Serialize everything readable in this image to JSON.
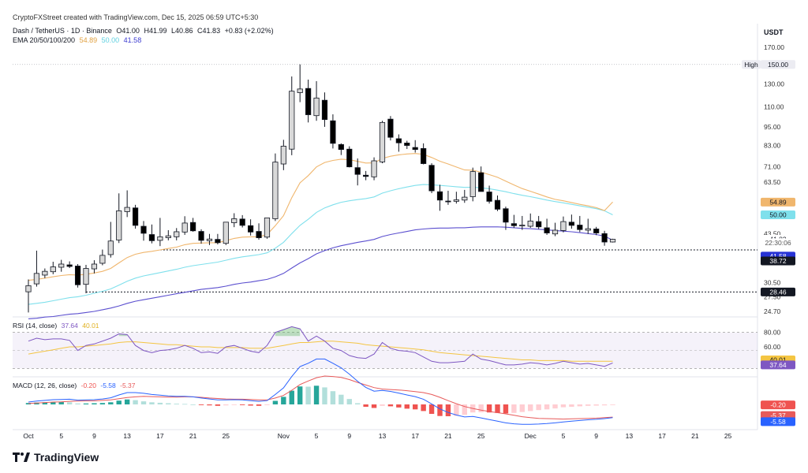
{
  "header": {
    "created_line": "CryptoFXStreet created with TradingView.com, Dec 15, 2025 06:59 UTC+5:30",
    "symbol_line": "Dash / TetherUS · 1D · Binance",
    "ohlc": {
      "o": "O41.00",
      "h": "H41.99",
      "l": "L40.86",
      "c": "C41.83",
      "chg": "+0.83 (+2.02%)"
    },
    "ema_label": "EMA 20/50/100/200",
    "ema_values": [
      "54.89",
      "50.00",
      "41.58"
    ]
  },
  "currency": "USDT",
  "logo_text": "TradingView",
  "colors": {
    "ema20": "#f0b66d",
    "ema50": "#7fe0ec",
    "ema100": "#5b4fcf",
    "ema200": "#7b6fd6",
    "up": "#d9d9d9",
    "down": "#000000",
    "rsi": "#7e57c2",
    "rsi_ma": "#f4c542",
    "macd_line": "#2962ff",
    "signal_line": "#e75a5a",
    "hist_pos": "#26a69a",
    "hist_neg": "#ef5350"
  },
  "chart_data": {
    "type": "candlestick",
    "ylim": [
      24,
      175
    ],
    "y_scale": "log",
    "y_ticks": [
      "170.00",
      "130.00",
      "110.00",
      "95.00",
      "83.00",
      "71.00",
      "63.50",
      "43.50",
      "30.50",
      "27.50",
      "24.70"
    ],
    "x_ticks": [
      "Oct",
      "5",
      "9",
      "13",
      "17",
      "21",
      "25",
      "Nov",
      "5",
      "9",
      "13",
      "17",
      "21",
      "25",
      "Dec",
      "5",
      "9",
      "13",
      "17",
      "21",
      "25"
    ],
    "start_date": "2025-10-01",
    "ohlc": [
      [
        28.5,
        31.2,
        24.5,
        29.8
      ],
      [
        30.2,
        38.5,
        29.6,
        32.6
      ],
      [
        32.2,
        33.8,
        31.5,
        33.1
      ],
      [
        33.0,
        35.5,
        32.4,
        34.2
      ],
      [
        34.1,
        36.0,
        33.0,
        34.9
      ],
      [
        34.7,
        35.6,
        33.9,
        34.3
      ],
      [
        34.4,
        34.9,
        29.4,
        30.0
      ],
      [
        30.1,
        34.7,
        28.2,
        33.8
      ],
      [
        33.7,
        35.9,
        32.6,
        34.9
      ],
      [
        35.1,
        38.8,
        34.6,
        37.2
      ],
      [
        37.4,
        47.5,
        36.6,
        41.3
      ],
      [
        41.6,
        58.5,
        40.7,
        51.5
      ],
      [
        51.2,
        59.8,
        49.2,
        52.8
      ],
      [
        52.6,
        53.8,
        45.2,
        46.3
      ],
      [
        46.0,
        47.8,
        41.4,
        43.7
      ],
      [
        43.3,
        46.6,
        40.6,
        41.4
      ],
      [
        41.5,
        48.9,
        39.8,
        42.6
      ],
      [
        42.3,
        44.7,
        41.5,
        42.9
      ],
      [
        42.6,
        45.4,
        41.5,
        44.2
      ],
      [
        44.1,
        49.5,
        43.2,
        47.1
      ],
      [
        47.3,
        48.9,
        44.2,
        44.5
      ],
      [
        44.3,
        45.0,
        40.5,
        41.5
      ],
      [
        41.4,
        43.5,
        40.1,
        41.9
      ],
      [
        41.8,
        43.5,
        40.3,
        40.8
      ],
      [
        40.6,
        47.4,
        40.1,
        47.4
      ],
      [
        47.2,
        50.6,
        45.7,
        48.6
      ],
      [
        48.5,
        49.9,
        45.6,
        46.3
      ],
      [
        46.2,
        48.4,
        43.0,
        44.1
      ],
      [
        44.3,
        47.0,
        41.7,
        42.3
      ],
      [
        42.5,
        48.4,
        42.0,
        48.9
      ],
      [
        48.6,
        78.3,
        47.8,
        73.5
      ],
      [
        72.5,
        86.5,
        69.3,
        82.6
      ],
      [
        80.8,
        137.4,
        77.3,
        123.4
      ],
      [
        122.1,
        150.1,
        113.9,
        125.4
      ],
      [
        125.9,
        134.3,
        98.2,
        103.9
      ],
      [
        103.2,
        132.8,
        99.4,
        117.4
      ],
      [
        115.5,
        122.3,
        95.1,
        100.3
      ],
      [
        99.4,
        104.2,
        81.2,
        84.3
      ],
      [
        83.6,
        84.3,
        77.4,
        80.6
      ],
      [
        80.8,
        82.5,
        70.7,
        71.0
      ],
      [
        70.6,
        75.5,
        62.0,
        67.2
      ],
      [
        66.8,
        68.9,
        64.4,
        66.2
      ],
      [
        66.0,
        76.1,
        64.4,
        74.2
      ],
      [
        73.6,
        99.4,
        72.9,
        98.2
      ],
      [
        100.6,
        102.9,
        86.1,
        88.1
      ],
      [
        87.2,
        90.0,
        79.3,
        84.6
      ],
      [
        84.5,
        85.9,
        80.9,
        83.0
      ],
      [
        81.8,
        86.3,
        78.8,
        80.6
      ],
      [
        81.2,
        84.3,
        72.3,
        72.7
      ],
      [
        71.8,
        72.9,
        58.6,
        59.6
      ],
      [
        59.2,
        62.3,
        51.5,
        55.7
      ],
      [
        55.3,
        59.6,
        53.8,
        55.1
      ],
      [
        55.2,
        59.2,
        54.3,
        55.8
      ],
      [
        55.7,
        60.0,
        54.6,
        56.9
      ],
      [
        57.1,
        70.6,
        55.2,
        68.6
      ],
      [
        68.0,
        71.2,
        59.6,
        59.3
      ],
      [
        59.1,
        61.9,
        54.3,
        55.2
      ],
      [
        55.6,
        57.6,
        51.4,
        52.1
      ],
      [
        52.3,
        53.1,
        44.8,
        47.4
      ],
      [
        46.9,
        50.0,
        45.5,
        46.2
      ],
      [
        46.1,
        49.6,
        44.8,
        46.4
      ],
      [
        46.0,
        50.5,
        45.5,
        47.8
      ],
      [
        47.6,
        49.6,
        45.1,
        45.8
      ],
      [
        45.5,
        48.6,
        43.2,
        43.8
      ],
      [
        43.5,
        47.2,
        42.8,
        44.7
      ],
      [
        44.6,
        49.4,
        44.0,
        47.6
      ],
      [
        47.4,
        50.1,
        45.2,
        46.3
      ],
      [
        46.4,
        49.6,
        44.1,
        44.9
      ],
      [
        44.7,
        48.6,
        43.5,
        45.2
      ],
      [
        45.1,
        45.8,
        43.1,
        43.8
      ],
      [
        43.6,
        44.5,
        39.9,
        41.0
      ],
      [
        41.0,
        41.99,
        40.86,
        41.83
      ]
    ],
    "ema20": [
      31.0,
      31.2,
      31.5,
      31.8,
      32.1,
      32.3,
      32.2,
      32.4,
      32.7,
      33.1,
      33.8,
      35.2,
      36.6,
      37.5,
      38.0,
      38.3,
      38.7,
      39.1,
      39.5,
      40.2,
      40.6,
      40.7,
      40.8,
      40.8,
      41.4,
      42.1,
      42.5,
      42.6,
      42.6,
      43.3,
      46.2,
      49.7,
      56.7,
      63.2,
      66.6,
      71.0,
      73.3,
      74.4,
      75.1,
      74.8,
      73.9,
      73.0,
      73.1,
      75.5,
      76.7,
      77.5,
      78.0,
      78.3,
      77.8,
      76.0,
      74.0,
      72.5,
      70.9,
      69.4,
      69.3,
      68.3,
      67.1,
      65.8,
      64.0,
      62.2,
      60.6,
      59.4,
      58.2,
      57.0,
      56.0,
      55.4,
      54.7,
      54.0,
      53.4,
      52.7,
      51.6,
      54.89
    ],
    "ema50": [
      26.0,
      26.2,
      26.4,
      26.7,
      27.0,
      27.3,
      27.5,
      27.8,
      28.2,
      28.6,
      29.1,
      29.9,
      30.8,
      31.5,
      32.0,
      32.4,
      32.8,
      33.2,
      33.6,
      34.1,
      34.5,
      34.8,
      35.1,
      35.4,
      35.9,
      36.4,
      36.8,
      37.1,
      37.4,
      37.9,
      39.2,
      40.9,
      43.6,
      46.3,
      48.4,
      50.9,
      52.6,
      53.8,
      54.8,
      55.4,
      55.9,
      56.3,
      57.0,
      58.6,
      59.6,
      60.5,
      61.3,
      62.0,
      62.4,
      62.3,
      62.0,
      61.7,
      61.4,
      61.1,
      61.2,
      60.9,
      60.5,
      59.9,
      59.2,
      58.4,
      57.7,
      57.1,
      56.4,
      55.7,
      55.1,
      54.6,
      54.0,
      53.4,
      52.9,
      52.3,
      51.5,
      50.0
    ],
    "ema100": [
      23.4,
      23.5,
      23.7,
      23.8,
      24.0,
      24.2,
      24.3,
      24.5,
      24.7,
      25.0,
      25.3,
      25.7,
      26.2,
      26.6,
      26.9,
      27.2,
      27.5,
      27.8,
      28.1,
      28.4,
      28.7,
      29.0,
      29.2,
      29.4,
      29.7,
      30.1,
      30.4,
      30.6,
      30.9,
      31.2,
      31.8,
      32.6,
      33.9,
      35.2,
      36.3,
      37.6,
      38.5,
      39.3,
      39.9,
      40.4,
      40.9,
      41.3,
      41.8,
      42.7,
      43.3,
      43.8,
      44.3,
      44.8,
      45.1,
      45.3,
      45.4,
      45.4,
      45.5,
      45.5,
      45.7,
      45.8,
      45.8,
      45.8,
      45.7,
      45.5,
      45.3,
      45.2,
      45.0,
      44.8,
      44.6,
      44.4,
      44.2,
      43.9,
      43.6,
      43.3,
      42.8,
      41.58
    ],
    "rsi": [
      68,
      72,
      70,
      71,
      71,
      69,
      55,
      62,
      64,
      68,
      72,
      78,
      77,
      62,
      55,
      52,
      55,
      56,
      58,
      62,
      58,
      52,
      53,
      51,
      60,
      62,
      58,
      54,
      52,
      62,
      80,
      84,
      88,
      85,
      68,
      75,
      68,
      58,
      55,
      48,
      45,
      44,
      50,
      66,
      58,
      55,
      54,
      52,
      46,
      40,
      38,
      38,
      39,
      40,
      50,
      43,
      41,
      38,
      35,
      35,
      36,
      38,
      37,
      35,
      37,
      40,
      38,
      36,
      37,
      35,
      33,
      37.64
    ],
    "rsi_ma": [
      50,
      52,
      54,
      56,
      58,
      60,
      60,
      61,
      62,
      63,
      64,
      66,
      67,
      67,
      66,
      65,
      64,
      63,
      63,
      62,
      61,
      60,
      60,
      59,
      59,
      59,
      59,
      58,
      58,
      58,
      60,
      62,
      64,
      66,
      66,
      67,
      68,
      68,
      67,
      66,
      65,
      63,
      62,
      61,
      60,
      59,
      58,
      57,
      56,
      54,
      52,
      51,
      50,
      49,
      48,
      47,
      46,
      45,
      44,
      43,
      42,
      42,
      41,
      41,
      41,
      41,
      40,
      40,
      40,
      40,
      40,
      40.01
    ],
    "rsi_ticks": [
      "80.00",
      "60.00"
    ],
    "macd_hist": [
      0.6,
      0.8,
      0.9,
      1.0,
      1.0,
      0.9,
      0.4,
      0.4,
      0.5,
      0.6,
      0.9,
      1.6,
      2.1,
      1.8,
      1.3,
      0.9,
      0.7,
      0.5,
      0.3,
      0.2,
      0.0,
      -0.3,
      -0.4,
      -0.6,
      -0.4,
      -0.2,
      -0.3,
      -0.5,
      -0.6,
      -0.3,
      1.5,
      3.2,
      5.8,
      7.6,
      7.5,
      7.9,
      7.2,
      5.6,
      4.1,
      2.3,
      0.5,
      -1.0,
      -1.5,
      -0.6,
      -0.8,
      -1.3,
      -1.8,
      -2.1,
      -2.8,
      -4.0,
      -4.9,
      -5.0,
      -4.8,
      -4.4,
      -3.4,
      -3.3,
      -3.4,
      -3.6,
      -3.8,
      -3.6,
      -3.2,
      -2.8,
      -2.4,
      -2.1,
      -1.7,
      -1.2,
      -1.0,
      -0.8,
      -0.6,
      -0.5,
      -0.4,
      -0.2
    ],
    "macd_line": [
      1.0,
      1.4,
      1.7,
      2.0,
      2.1,
      2.2,
      1.8,
      1.9,
      2.0,
      2.3,
      2.8,
      4.0,
      5.0,
      5.0,
      4.7,
      4.2,
      3.9,
      3.6,
      3.4,
      3.4,
      3.2,
      2.7,
      2.3,
      1.9,
      1.9,
      2.0,
      1.9,
      1.6,
      1.3,
      1.6,
      4.2,
      7.0,
      11.8,
      16.0,
      17.4,
      19.2,
      19.2,
      17.4,
      15.5,
      12.8,
      9.8,
      7.2,
      5.6,
      5.9,
      5.5,
      4.8,
      4.0,
      3.3,
      2.2,
      0.2,
      -1.9,
      -3.4,
      -4.5,
      -5.3,
      -5.1,
      -5.7,
      -6.4,
      -7.1,
      -7.8,
      -8.2,
      -8.4,
      -8.4,
      -8.3,
      -8.1,
      -7.8,
      -7.4,
      -7.1,
      -6.8,
      -6.5,
      -6.3,
      -6.0,
      -5.58
    ],
    "signal_line": [
      0.4,
      0.6,
      0.8,
      1.0,
      1.1,
      1.3,
      1.4,
      1.5,
      1.5,
      1.7,
      1.9,
      2.4,
      2.9,
      3.2,
      3.4,
      3.3,
      3.2,
      3.1,
      3.1,
      3.2,
      3.2,
      3.0,
      2.7,
      2.5,
      2.3,
      2.2,
      2.2,
      2.1,
      1.9,
      1.9,
      2.7,
      3.8,
      6.0,
      8.4,
      9.9,
      11.3,
      12.0,
      11.8,
      11.4,
      10.5,
      9.3,
      8.2,
      7.1,
      6.5,
      6.3,
      6.1,
      5.8,
      5.4,
      5.0,
      4.2,
      3.0,
      1.6,
      0.3,
      -0.9,
      -1.7,
      -2.4,
      -3.0,
      -3.5,
      -4.0,
      -4.6,
      -5.2,
      -5.6,
      -5.9,
      -6.0,
      -6.1,
      -6.2,
      -6.1,
      -6.0,
      -5.9,
      -5.8,
      -5.6,
      -5.37
    ],
    "hlines": [
      {
        "value": 38.72
      },
      {
        "value": 28.46
      }
    ]
  },
  "axis_tags": [
    {
      "id": "high-label",
      "text": "High",
      "bg": "#ececf2",
      "fg": "#131722",
      "val": 150
    },
    {
      "id": "high-value",
      "text": "150.00",
      "bg": "#ececf2",
      "fg": "#131722",
      "val": 150
    },
    {
      "id": "ema20-tag",
      "text": "54.89",
      "bg": "#f0b66d",
      "fg": "#131722",
      "val": 54.89
    },
    {
      "id": "ema50-tag",
      "text": "50.00",
      "bg": "#7fe0ec",
      "fg": "#131722",
      "val": 50.0
    },
    {
      "id": "price-tag",
      "text": "41.83",
      "bg": "#ffffff",
      "fg": "#131722",
      "val": 41.83
    },
    {
      "id": "countdown-tag",
      "text": "22:30:06",
      "bg": "#ffffff",
      "fg": "#555",
      "val": 40.8
    },
    {
      "id": "ema100-tag",
      "text": "41.58",
      "bg": "#2733d6",
      "fg": "#ffffff",
      "val": 37.0
    },
    {
      "id": "support1-tag",
      "text": "38.72",
      "bg": "#131722",
      "fg": "#ffffff",
      "val": 35.7
    },
    {
      "id": "support2-tag",
      "text": "28.46",
      "bg": "#131722",
      "fg": "#ffffff",
      "val": 28.46
    }
  ],
  "rsi_panel": {
    "label": "RSI (14, close)",
    "v1": "37.64",
    "v2": "40.01"
  },
  "rsi_tags": [
    {
      "text": "40.01",
      "bg": "#f4c542",
      "fg": "#131722",
      "val": 42
    },
    {
      "text": "37.64",
      "bg": "#7e57c2",
      "fg": "#ffffff",
      "val": 35
    }
  ],
  "macd_panel": {
    "label": "MACD (12, 26, close)",
    "v1": "-0.20",
    "v2": "-5.58",
    "v3": "-5.37"
  },
  "macd_tags": [
    {
      "text": "-0.20",
      "bg": "#ef5350",
      "fg": "#ffffff",
      "val": -0.2
    },
    {
      "text": "-5.37",
      "bg": "#e75a5a",
      "fg": "#ffffff",
      "val": -4.7
    },
    {
      "text": "-5.58",
      "bg": "#2962ff",
      "fg": "#ffffff",
      "val": -7.3
    }
  ]
}
